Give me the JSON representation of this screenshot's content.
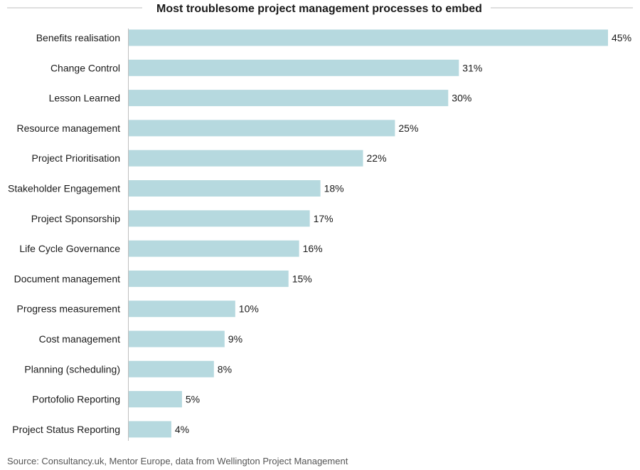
{
  "chart_data": {
    "type": "bar",
    "orientation": "horizontal",
    "title": "Most troublesome project management processes to embed",
    "source": "Source: Consultancy.uk, Mentor Europe, data from Wellington Project Management",
    "categories": [
      "Benefits realisation",
      "Change Control",
      "Lesson Learned",
      "Resource management",
      "Project Prioritisation",
      "Stakeholder Engagement",
      "Project Sponsorship",
      "Life Cycle Governance",
      "Document management",
      "Progress measurement",
      "Cost management",
      "Planning (scheduling)",
      "Portofolio Reporting",
      "Project Status Reporting"
    ],
    "values": [
      45,
      31,
      30,
      25,
      22,
      18,
      17,
      16,
      15,
      10,
      9,
      8,
      5,
      4
    ],
    "value_labels": [
      "45%",
      "31%",
      "30%",
      "25%",
      "22%",
      "18%",
      "17%",
      "16%",
      "15%",
      "10%",
      "9%",
      "8%",
      "5%",
      "4%"
    ],
    "unit": "%",
    "xlim": [
      0,
      45
    ],
    "bar_color": "#b6d9df",
    "axis_color": "#bfbfbf",
    "grid": false,
    "legend": "none"
  }
}
